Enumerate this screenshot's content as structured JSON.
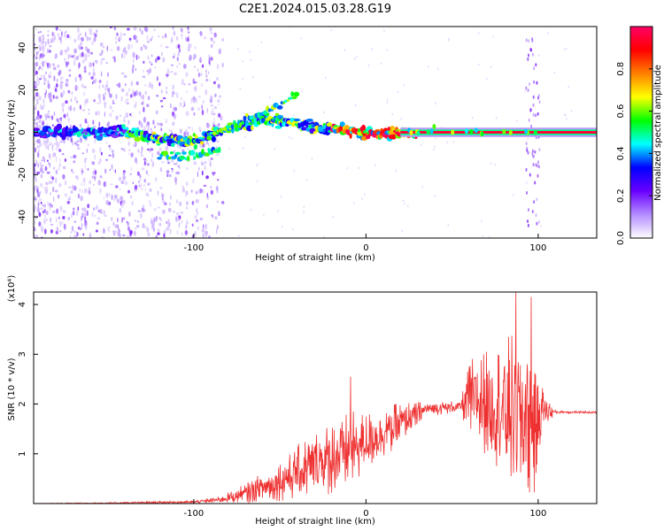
{
  "title": "C2E1.2024.015.03.28.G19",
  "chart_data": [
    {
      "type": "heatmap",
      "xlabel": "Height of straight line (km)",
      "ylabel": "Frequency (Hz)",
      "xlim": [
        -193,
        134
      ],
      "ylim": [
        -50,
        50
      ],
      "xticks": [
        -100,
        0,
        100
      ],
      "yticks": [
        -40,
        -20,
        0,
        20,
        40
      ],
      "xtick_labels": [
        "-100",
        "0",
        "100"
      ],
      "ytick_labels": [
        "-40",
        "-20",
        "0",
        "20",
        "40"
      ],
      "colorbar": {
        "label": "Normalized spectral amplitude",
        "range": [
          0.0,
          1.0
        ],
        "ticks": [
          0.0,
          0.2,
          0.4,
          0.6,
          0.8
        ],
        "tick_labels": [
          "0.0",
          "0.2",
          "0.4",
          "0.6",
          "0.8"
        ],
        "colors": [
          "#ffffff",
          "#b48cff",
          "#6a00ff",
          "#0000ff",
          "#00ffff",
          "#00ff00",
          "#ffff00",
          "#ff8000",
          "#ff0000",
          "#ff0066"
        ]
      },
      "ridge": [
        {
          "x": -190,
          "y": 0
        },
        {
          "x": -140,
          "y": 0
        },
        {
          "x": -120,
          "y": -3
        },
        {
          "x": -100,
          "y": -4
        },
        {
          "x": -80,
          "y": 2
        },
        {
          "x": -60,
          "y": 6
        },
        {
          "x": -45,
          "y": 5
        },
        {
          "x": -30,
          "y": 2
        },
        {
          "x": -10,
          "y": 1
        },
        {
          "x": 0,
          "y": -1
        },
        {
          "x": 20,
          "y": 0
        },
        {
          "x": 60,
          "y": 0
        },
        {
          "x": 95,
          "y": 0
        },
        {
          "x": 134,
          "y": 0
        }
      ],
      "lower_branch": [
        {
          "x": -120,
          "y": -11
        },
        {
          "x": -100,
          "y": -12
        },
        {
          "x": -85,
          "y": -8
        }
      ],
      "upper_branch": [
        {
          "x": -80,
          "y": 3
        },
        {
          "x": -60,
          "y": 9
        },
        {
          "x": -40,
          "y": 18
        }
      ]
    },
    {
      "type": "line",
      "xlabel": "Height of straight line (km)",
      "ylabel": "SNR (10 * v/v)",
      "scale_note": "(x10⁴)",
      "xlim": [
        -193,
        134
      ],
      "ylim": [
        0,
        42500
      ],
      "xticks": [
        -100,
        0,
        100
      ],
      "yticks": [
        10000,
        20000,
        30000,
        40000
      ],
      "xtick_labels": [
        "-100",
        "0",
        "100"
      ],
      "ytick_labels": [
        "1",
        "2",
        "3",
        "4"
      ],
      "color": "#ee3030",
      "envelope": [
        {
          "x": -193,
          "y": 0,
          "amp": 100
        },
        {
          "x": -150,
          "y": 100,
          "amp": 150
        },
        {
          "x": -100,
          "y": 300,
          "amp": 300
        },
        {
          "x": -85,
          "y": 800,
          "amp": 600
        },
        {
          "x": -70,
          "y": 2000,
          "amp": 2000
        },
        {
          "x": -50,
          "y": 4500,
          "amp": 4000
        },
        {
          "x": -30,
          "y": 8000,
          "amp": 7000
        },
        {
          "x": -10,
          "y": 10500,
          "amp": 8000
        },
        {
          "x": 0,
          "y": 12500,
          "amp": 6000
        },
        {
          "x": 20,
          "y": 16000,
          "amp": 4500
        },
        {
          "x": 35,
          "y": 19000,
          "amp": 1500
        },
        {
          "x": 55,
          "y": 19500,
          "amp": 1200
        },
        {
          "x": 60,
          "y": 21000,
          "amp": 8000
        },
        {
          "x": 75,
          "y": 20000,
          "amp": 12000
        },
        {
          "x": 88,
          "y": 18000,
          "amp": 17000
        },
        {
          "x": 98,
          "y": 17000,
          "amp": 16000
        },
        {
          "x": 102,
          "y": 19000,
          "amp": 5000
        },
        {
          "x": 110,
          "y": 18400,
          "amp": 300
        },
        {
          "x": 134,
          "y": 18300,
          "amp": 200
        }
      ],
      "spikes": [
        {
          "x": -9,
          "y": 25500
        },
        {
          "x": 59,
          "y": 26500
        },
        {
          "x": 70,
          "y": 30500
        },
        {
          "x": 87,
          "y": 42500
        },
        {
          "x": 96,
          "y": 41500
        }
      ]
    }
  ]
}
